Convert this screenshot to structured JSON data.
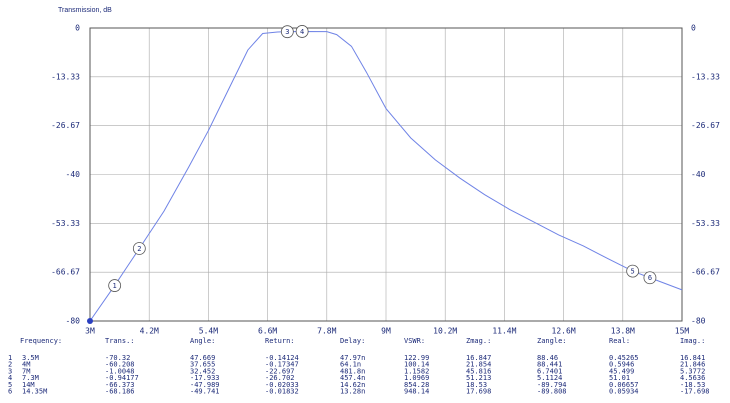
{
  "chart_data": {
    "type": "line",
    "y_axis_label": "Transmission, dB",
    "xlim": [
      3,
      15
    ],
    "xticks": [
      {
        "value": 3,
        "label": "3M"
      },
      {
        "value": 4.2,
        "label": "4.2M"
      },
      {
        "value": 5.4,
        "label": "5.4M"
      },
      {
        "value": 6.6,
        "label": "6.6M"
      },
      {
        "value": 7.8,
        "label": "7.8M"
      },
      {
        "value": 9,
        "label": "9M"
      },
      {
        "value": 10.2,
        "label": "10.2M"
      },
      {
        "value": 11.4,
        "label": "11.4M"
      },
      {
        "value": 12.6,
        "label": "12.6M"
      },
      {
        "value": 13.8,
        "label": "13.8M"
      },
      {
        "value": 15,
        "label": "15M"
      }
    ],
    "ylim": [
      -80,
      0
    ],
    "yticks": [
      0,
      -13.33,
      -26.67,
      -40,
      -53.33,
      -66.67,
      -80
    ],
    "grid": true,
    "series": [
      {
        "name": "Transmission",
        "color": "#6f83e6",
        "x": [
          3,
          3.5,
          4,
          4.5,
          5,
          5.4,
          5.8,
          6.2,
          6.5,
          6.8,
          7,
          7.3,
          7.8,
          8,
          8.3,
          8.6,
          9,
          9.5,
          10,
          10.5,
          11,
          11.5,
          12,
          12.5,
          13,
          13.5,
          14,
          14.35,
          15
        ],
        "values": [
          -80,
          -70.32,
          -60.208,
          -50,
          -38,
          -28,
          -17,
          -6,
          -1.5,
          -1.1,
          -1.0048,
          -0.94177,
          -1,
          -1.8,
          -5,
          -12,
          -22,
          -30,
          -36,
          -41,
          -45.5,
          -49.5,
          -53,
          -56.5,
          -59.5,
          -63,
          -66.373,
          -68.186,
          -71.5
        ]
      }
    ],
    "markers": {
      "labels": [
        "1",
        "2",
        "3",
        "4",
        "5",
        "6"
      ],
      "x": [
        3.5,
        4,
        7,
        7.3,
        14,
        14.35
      ],
      "values": [
        -70.32,
        -60.208,
        -1.0048,
        -0.94177,
        -66.373,
        -68.186
      ]
    }
  },
  "table": {
    "header": [
      "Frequency:",
      "Trans.:",
      "Angle:",
      "Return:",
      "Delay:",
      "VSWR:",
      "Zmag.:",
      "Zangle:",
      "Real:",
      "Imag.:"
    ],
    "rows": [
      [
        "1",
        "3.5M",
        "-70.32",
        "47.669",
        "-0.14124",
        "47.97n",
        "122.99",
        "16.847",
        "88.46",
        "0.45265",
        "16.841"
      ],
      [
        "2",
        "4M",
        "-60.208",
        "37.655",
        "-0.17347",
        "64.1n",
        "100.14",
        "21.854",
        "88.441",
        "0.5946",
        "21.846"
      ],
      [
        "3",
        "7M",
        "-1.0048",
        "32.452",
        "-22.697",
        "481.8n",
        "1.1582",
        "45.816",
        "6.7401",
        "45.499",
        "5.3772"
      ],
      [
        "4",
        "7.3M",
        "-0.94177",
        "-17.933",
        "-26.702",
        "457.4n",
        "1.0969",
        "51.213",
        "5.1124",
        "51.01",
        "4.5636"
      ],
      [
        "5",
        "14M",
        "-66.373",
        "-47.989",
        "-0.02033",
        "14.62n",
        "854.28",
        "18.53",
        "-89.794",
        "0.06657",
        "-18.53"
      ],
      [
        "6",
        "14.35M",
        "-68.186",
        "-49.741",
        "-0.01832",
        "13.28n",
        "948.14",
        "17.698",
        "-89.808",
        "0.05934",
        "-17.698"
      ]
    ]
  }
}
